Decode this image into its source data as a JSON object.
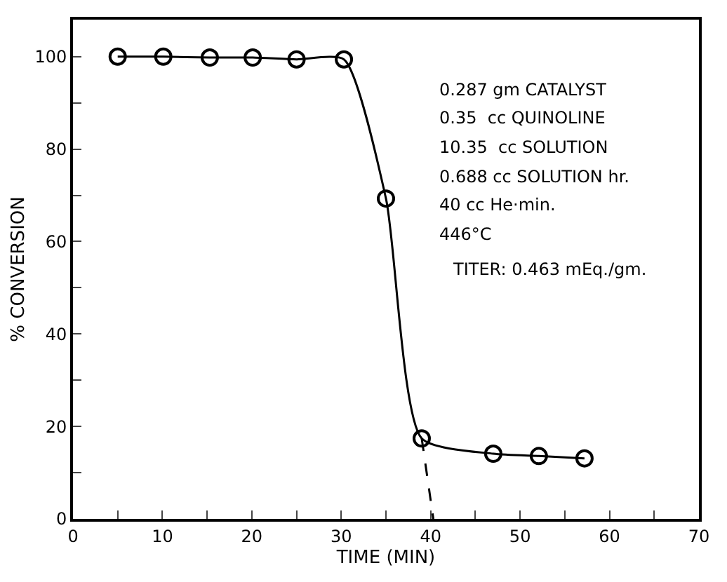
{
  "chart_data": {
    "type": "line",
    "xlabel": "TIME (MIN)",
    "ylabel": "% CONVERSION",
    "xlim": [
      0,
      70
    ],
    "ylim": [
      0,
      108
    ],
    "xticks": [
      0,
      {
        "value": 5,
        "label": null
      },
      10,
      {
        "value": 15,
        "label": null
      },
      20,
      {
        "value": 25,
        "label": null
      },
      30,
      {
        "value": 35,
        "label": null
      },
      40,
      {
        "value": 45,
        "label": null
      },
      50,
      {
        "value": 55,
        "label": null
      },
      60,
      {
        "value": 65,
        "label": null
      },
      70
    ],
    "yticks": [
      0,
      {
        "value": 10,
        "label": null
      },
      20,
      {
        "value": 30,
        "label": null
      },
      40,
      {
        "value": 50,
        "label": null
      },
      60,
      {
        "value": 70,
        "label": null
      },
      80,
      {
        "value": 90,
        "label": null
      },
      100
    ],
    "marker": "circle",
    "series": [
      {
        "color": "#000000",
        "x": [
          5.0,
          10.1,
          15.3,
          20.1,
          25.0,
          30.3,
          35.0,
          39.0,
          47.0,
          52.1,
          57.2
        ],
        "values": [
          100,
          100,
          99.8,
          99.8,
          99.4,
          99.4,
          69.3,
          17.4,
          14.1,
          13.6,
          13.1
        ]
      },
      {
        "color": "#000000",
        "x": [
          39.0,
          40.3
        ],
        "values": [
          17.4,
          0
        ],
        "marker": "none",
        "line_style": "dashed"
      }
    ],
    "annotations": [
      "0.287 gm CATALYST",
      "0.35  cc QUINOLINE",
      "10.35  cc SOLUTION",
      "0.688 cc SOLUTION hr.",
      "40 cc He·min.",
      "446°C",
      "TITER: 0.463 mEq./gm."
    ]
  }
}
